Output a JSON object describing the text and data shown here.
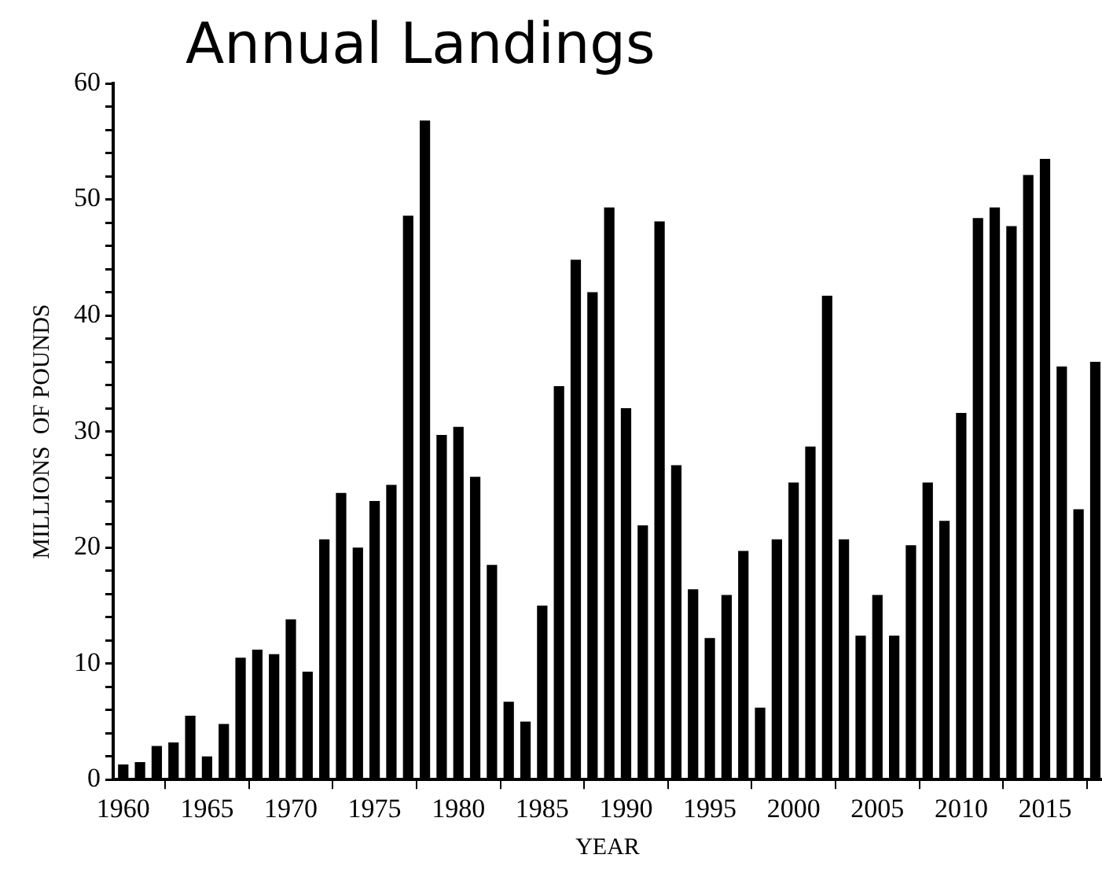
{
  "chart_data": {
    "type": "bar",
    "title": "Annual Landings",
    "xlabel": "YEAR",
    "ylabel": "MILLIONS  OF POUNDS",
    "x": [
      1960,
      1961,
      1962,
      1963,
      1964,
      1965,
      1966,
      1967,
      1968,
      1969,
      1970,
      1971,
      1972,
      1973,
      1974,
      1975,
      1976,
      1977,
      1978,
      1979,
      1980,
      1981,
      1982,
      1983,
      1984,
      1985,
      1986,
      1987,
      1988,
      1989,
      1990,
      1991,
      1992,
      1993,
      1994,
      1995,
      1996,
      1997,
      1998,
      1999,
      2000,
      2001,
      2002,
      2003,
      2004,
      2005,
      2006,
      2007,
      2008,
      2009,
      2010,
      2011,
      2012,
      2013,
      2014,
      2015,
      2016,
      2017,
      2018
    ],
    "values": [
      1.3,
      1.5,
      2.9,
      3.2,
      5.5,
      2.0,
      4.8,
      10.5,
      11.2,
      10.8,
      13.8,
      9.3,
      20.7,
      24.7,
      20.0,
      24.0,
      25.4,
      48.6,
      56.8,
      29.7,
      30.4,
      26.1,
      18.5,
      6.7,
      5.0,
      15.0,
      33.9,
      44.8,
      42.0,
      49.3,
      32.0,
      21.9,
      48.1,
      27.1,
      16.4,
      12.2,
      15.9,
      19.7,
      6.2,
      20.7,
      25.6,
      28.7,
      41.7,
      20.7,
      12.4,
      15.9,
      12.4,
      20.2,
      25.6,
      22.3,
      31.6,
      48.4,
      49.3,
      47.7,
      52.1,
      53.5,
      35.6,
      23.3,
      36.0
    ],
    "color": "#000000",
    "xlim": [
      1959.4,
      2018.4
    ],
    "xticks": [
      1960,
      1965,
      1970,
      1975,
      1980,
      1985,
      1990,
      1995,
      2000,
      2005,
      2010,
      2015
    ],
    "ylim": [
      0,
      60
    ],
    "yticks": [
      0,
      {
        "value": 2,
        "label": null
      },
      {
        "value": 4,
        "label": null
      },
      {
        "value": 6,
        "label": null
      },
      {
        "value": 8,
        "label": null
      },
      10,
      {
        "value": 12,
        "label": null
      },
      {
        "value": 14,
        "label": null
      },
      {
        "value": 16,
        "label": null
      },
      {
        "value": 18,
        "label": null
      },
      20,
      {
        "value": 22,
        "label": null
      },
      {
        "value": 24,
        "label": null
      },
      {
        "value": 26,
        "label": null
      },
      {
        "value": 28,
        "label": null
      },
      30,
      {
        "value": 32,
        "label": null
      },
      {
        "value": 34,
        "label": null
      },
      {
        "value": 36,
        "label": null
      },
      {
        "value": 38,
        "label": null
      },
      40,
      {
        "value": 42,
        "label": null
      },
      {
        "value": 44,
        "label": null
      },
      {
        "value": 46,
        "label": null
      },
      {
        "value": 48,
        "label": null
      },
      50,
      {
        "value": 52,
        "label": null
      },
      {
        "value": 54,
        "label": null
      },
      {
        "value": 56,
        "label": null
      },
      {
        "value": 58,
        "label": null
      },
      60
    ],
    "grid": false,
    "legend": false
  }
}
